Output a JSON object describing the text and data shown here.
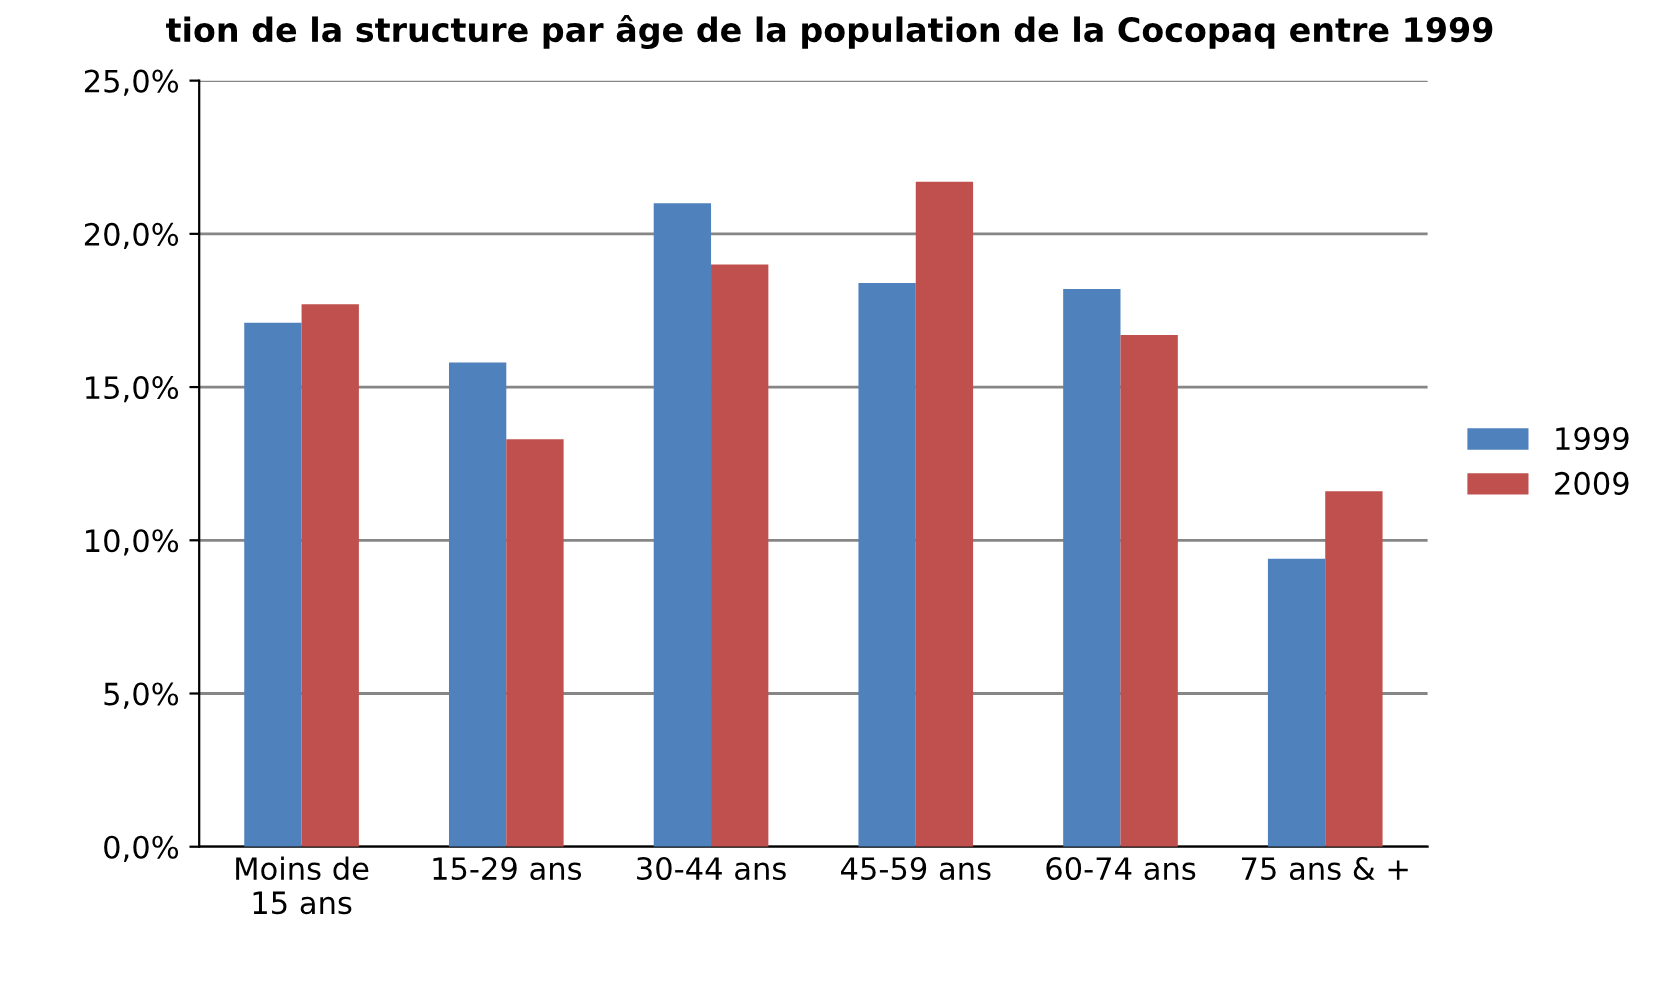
{
  "chart_data": {
    "type": "bar",
    "title": "tion de la structure par âge de la population de la Cocopaq entre 1999",
    "categories": [
      "Moins de\n15 ans",
      "15-29 ans",
      "30-44 ans",
      "45-59 ans",
      "60-74 ans",
      "75 ans & +"
    ],
    "series": [
      {
        "name": "1999",
        "color": "#4f81bd",
        "values": [
          17.1,
          15.8,
          21.0,
          18.4,
          18.2,
          9.4
        ]
      },
      {
        "name": "2009",
        "color": "#c0504d",
        "values": [
          17.7,
          13.3,
          19.0,
          21.7,
          16.7,
          11.6
        ]
      }
    ],
    "ylim": [
      0,
      25
    ],
    "yticks": [
      {
        "value": 0,
        "label": "0,0%"
      },
      {
        "value": 5,
        "label": "5,0%"
      },
      {
        "value": 10,
        "label": "10,0%"
      },
      {
        "value": 15,
        "label": "15,0%"
      },
      {
        "value": 20,
        "label": "20,0%"
      },
      {
        "value": 25,
        "label": "25,0%"
      }
    ],
    "grid": "y",
    "legend": "right"
  }
}
